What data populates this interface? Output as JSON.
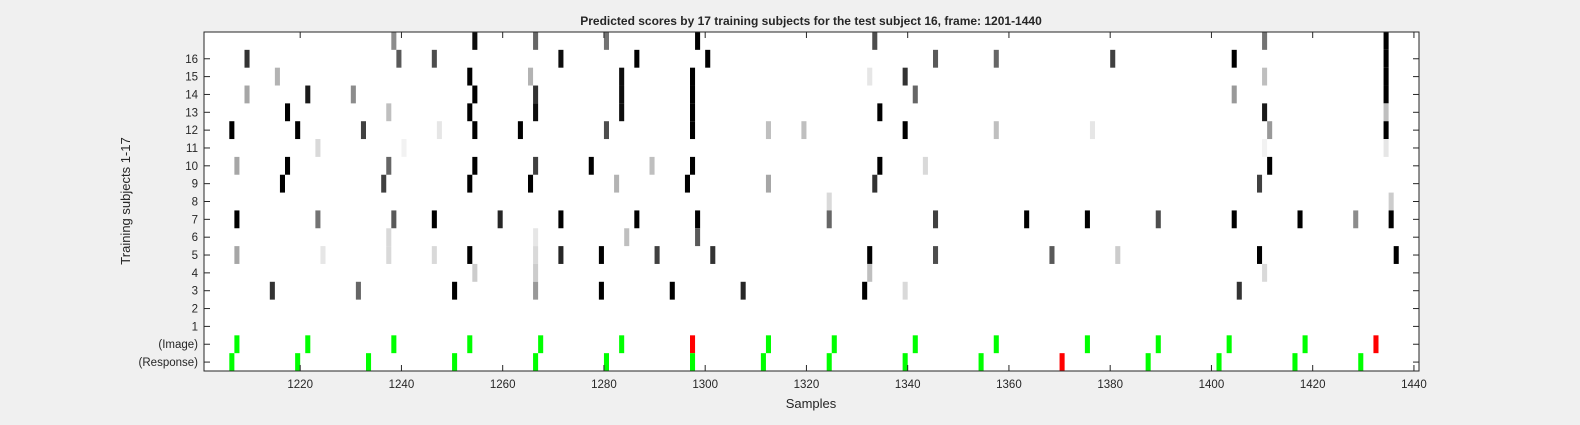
{
  "chart_data": {
    "type": "heatmap",
    "title": "Predicted scores by 17 training subjects for the test subject 16, frame: 1201-1440",
    "xlabel": "Samples",
    "ylabel": "Training subjects 1-17",
    "xlim": [
      1201,
      1440
    ],
    "xticks": [
      1220,
      1240,
      1260,
      1280,
      1300,
      1320,
      1340,
      1360,
      1380,
      1400,
      1420,
      1440
    ],
    "ytick_labels": [
      "16",
      "15",
      "14",
      "13",
      "12",
      "11",
      "10",
      "9",
      "8",
      "7",
      "6",
      "5",
      "4",
      "3",
      "2",
      "1",
      "(Image)",
      "(Response)"
    ],
    "rows": [
      "17",
      "16",
      "15",
      "14",
      "13",
      "12",
      "11",
      "10",
      "9",
      "8",
      "7",
      "6",
      "5",
      "4",
      "3",
      "2",
      "1",
      "(Image)",
      "(Response)"
    ],
    "colors": {
      "background": "#ffffff",
      "correct": "#00ff00",
      "incorrect": "#ff0000",
      "axis": "#262626",
      "figure": "#f0f0f0"
    },
    "marks": [
      {
        "row": "17",
        "x": 1238,
        "gray": 0.55
      },
      {
        "row": "17",
        "x": 1254,
        "gray": 0.05
      },
      {
        "row": "17",
        "x": 1266,
        "gray": 0.4
      },
      {
        "row": "17",
        "x": 1280,
        "gray": 0.45
      },
      {
        "row": "17",
        "x": 1298,
        "gray": 0.0
      },
      {
        "row": "17",
        "x": 1333,
        "gray": 0.3
      },
      {
        "row": "17",
        "x": 1410,
        "gray": 0.45
      },
      {
        "row": "17",
        "x": 1434,
        "gray": 0.0
      },
      {
        "row": "16",
        "x": 1209,
        "gray": 0.2
      },
      {
        "row": "16",
        "x": 1239,
        "gray": 0.35
      },
      {
        "row": "16",
        "x": 1246,
        "gray": 0.3
      },
      {
        "row": "16",
        "x": 1271,
        "gray": 0.05
      },
      {
        "row": "16",
        "x": 1286,
        "gray": 0.0
      },
      {
        "row": "16",
        "x": 1300,
        "gray": 0.0
      },
      {
        "row": "16",
        "x": 1345,
        "gray": 0.35
      },
      {
        "row": "16",
        "x": 1357,
        "gray": 0.4
      },
      {
        "row": "16",
        "x": 1380,
        "gray": 0.25
      },
      {
        "row": "16",
        "x": 1404,
        "gray": 0.0
      },
      {
        "row": "16",
        "x": 1434,
        "gray": 0.0
      },
      {
        "row": "15",
        "x": 1215,
        "gray": 0.7
      },
      {
        "row": "15",
        "x": 1253,
        "gray": 0.0
      },
      {
        "row": "15",
        "x": 1265,
        "gray": 0.7
      },
      {
        "row": "15",
        "x": 1283,
        "gray": 0.05
      },
      {
        "row": "15",
        "x": 1297,
        "gray": 0.0
      },
      {
        "row": "15",
        "x": 1332,
        "gray": 0.9
      },
      {
        "row": "15",
        "x": 1339,
        "gray": 0.2
      },
      {
        "row": "15",
        "x": 1410,
        "gray": 0.75
      },
      {
        "row": "15",
        "x": 1434,
        "gray": 0.0
      },
      {
        "row": "14",
        "x": 1209,
        "gray": 0.65
      },
      {
        "row": "14",
        "x": 1221,
        "gray": 0.1
      },
      {
        "row": "14",
        "x": 1230,
        "gray": 0.55
      },
      {
        "row": "14",
        "x": 1254,
        "gray": 0.0
      },
      {
        "row": "14",
        "x": 1266,
        "gray": 0.2
      },
      {
        "row": "14",
        "x": 1283,
        "gray": 0.05
      },
      {
        "row": "14",
        "x": 1297,
        "gray": 0.0
      },
      {
        "row": "14",
        "x": 1341,
        "gray": 0.4
      },
      {
        "row": "14",
        "x": 1404,
        "gray": 0.6
      },
      {
        "row": "14",
        "x": 1434,
        "gray": 0.0
      },
      {
        "row": "13",
        "x": 1217,
        "gray": 0.0
      },
      {
        "row": "13",
        "x": 1237,
        "gray": 0.75
      },
      {
        "row": "13",
        "x": 1253,
        "gray": 0.0
      },
      {
        "row": "13",
        "x": 1266,
        "gray": 0.05
      },
      {
        "row": "13",
        "x": 1283,
        "gray": 0.05
      },
      {
        "row": "13",
        "x": 1297,
        "gray": 0.0
      },
      {
        "row": "13",
        "x": 1334,
        "gray": 0.0
      },
      {
        "row": "13",
        "x": 1410,
        "gray": 0.1
      },
      {
        "row": "13",
        "x": 1434,
        "gray": 0.75
      },
      {
        "row": "12",
        "x": 1206,
        "gray": 0.0
      },
      {
        "row": "12",
        "x": 1219,
        "gray": 0.0
      },
      {
        "row": "12",
        "x": 1232,
        "gray": 0.25
      },
      {
        "row": "12",
        "x": 1247,
        "gray": 0.9
      },
      {
        "row": "12",
        "x": 1254,
        "gray": 0.0
      },
      {
        "row": "12",
        "x": 1263,
        "gray": 0.0
      },
      {
        "row": "12",
        "x": 1280,
        "gray": 0.3
      },
      {
        "row": "12",
        "x": 1297,
        "gray": 0.0
      },
      {
        "row": "12",
        "x": 1312,
        "gray": 0.75
      },
      {
        "row": "12",
        "x": 1319,
        "gray": 0.75
      },
      {
        "row": "12",
        "x": 1339,
        "gray": 0.0
      },
      {
        "row": "12",
        "x": 1357,
        "gray": 0.75
      },
      {
        "row": "12",
        "x": 1376,
        "gray": 0.9
      },
      {
        "row": "12",
        "x": 1411,
        "gray": 0.6
      },
      {
        "row": "12",
        "x": 1434,
        "gray": 0.0
      },
      {
        "row": "11",
        "x": 1223,
        "gray": 0.85
      },
      {
        "row": "11",
        "x": 1240,
        "gray": 0.95
      },
      {
        "row": "11",
        "x": 1410,
        "gray": 0.95
      },
      {
        "row": "11",
        "x": 1434,
        "gray": 0.9
      },
      {
        "row": "10",
        "x": 1207,
        "gray": 0.65
      },
      {
        "row": "10",
        "x": 1217,
        "gray": 0.0
      },
      {
        "row": "10",
        "x": 1237,
        "gray": 0.4
      },
      {
        "row": "10",
        "x": 1254,
        "gray": 0.0
      },
      {
        "row": "10",
        "x": 1266,
        "gray": 0.25
      },
      {
        "row": "10",
        "x": 1277,
        "gray": 0.0
      },
      {
        "row": "10",
        "x": 1289,
        "gray": 0.75
      },
      {
        "row": "10",
        "x": 1297,
        "gray": 0.0
      },
      {
        "row": "10",
        "x": 1334,
        "gray": 0.0
      },
      {
        "row": "10",
        "x": 1343,
        "gray": 0.85
      },
      {
        "row": "10",
        "x": 1411,
        "gray": 0.0
      },
      {
        "row": "9",
        "x": 1216,
        "gray": 0.0
      },
      {
        "row": "9",
        "x": 1236,
        "gray": 0.25
      },
      {
        "row": "9",
        "x": 1253,
        "gray": 0.0
      },
      {
        "row": "9",
        "x": 1265,
        "gray": 0.0
      },
      {
        "row": "9",
        "x": 1282,
        "gray": 0.7
      },
      {
        "row": "9",
        "x": 1296,
        "gray": 0.0
      },
      {
        "row": "9",
        "x": 1312,
        "gray": 0.65
      },
      {
        "row": "9",
        "x": 1333,
        "gray": 0.2
      },
      {
        "row": "9",
        "x": 1409,
        "gray": 0.25
      },
      {
        "row": "8",
        "x": 1324,
        "gray": 0.85
      },
      {
        "row": "8",
        "x": 1435,
        "gray": 0.8
      },
      {
        "row": "7",
        "x": 1207,
        "gray": 0.0
      },
      {
        "row": "7",
        "x": 1223,
        "gray": 0.45
      },
      {
        "row": "7",
        "x": 1238,
        "gray": 0.35
      },
      {
        "row": "7",
        "x": 1246,
        "gray": 0.0
      },
      {
        "row": "7",
        "x": 1259,
        "gray": 0.15
      },
      {
        "row": "7",
        "x": 1271,
        "gray": 0.0
      },
      {
        "row": "7",
        "x": 1286,
        "gray": 0.0
      },
      {
        "row": "7",
        "x": 1298,
        "gray": 0.0
      },
      {
        "row": "7",
        "x": 1324,
        "gray": 0.4
      },
      {
        "row": "7",
        "x": 1345,
        "gray": 0.25
      },
      {
        "row": "7",
        "x": 1363,
        "gray": 0.0
      },
      {
        "row": "7",
        "x": 1375,
        "gray": 0.0
      },
      {
        "row": "7",
        "x": 1389,
        "gray": 0.3
      },
      {
        "row": "7",
        "x": 1404,
        "gray": 0.0
      },
      {
        "row": "7",
        "x": 1417,
        "gray": 0.0
      },
      {
        "row": "7",
        "x": 1428,
        "gray": 0.55
      },
      {
        "row": "7",
        "x": 1435,
        "gray": 0.0
      },
      {
        "row": "6",
        "x": 1237,
        "gray": 0.85
      },
      {
        "row": "6",
        "x": 1266,
        "gray": 0.9
      },
      {
        "row": "6",
        "x": 1284,
        "gray": 0.75
      },
      {
        "row": "6",
        "x": 1298,
        "gray": 0.35
      },
      {
        "row": "5",
        "x": 1207,
        "gray": 0.65
      },
      {
        "row": "5",
        "x": 1224,
        "gray": 0.9
      },
      {
        "row": "5",
        "x": 1237,
        "gray": 0.85
      },
      {
        "row": "5",
        "x": 1246,
        "gray": 0.85
      },
      {
        "row": "5",
        "x": 1253,
        "gray": 0.0
      },
      {
        "row": "5",
        "x": 1266,
        "gray": 0.85
      },
      {
        "row": "5",
        "x": 1271,
        "gray": 0.15
      },
      {
        "row": "5",
        "x": 1279,
        "gray": 0.0
      },
      {
        "row": "5",
        "x": 1290,
        "gray": 0.25
      },
      {
        "row": "5",
        "x": 1301,
        "gray": 0.2
      },
      {
        "row": "5",
        "x": 1332,
        "gray": 0.0
      },
      {
        "row": "5",
        "x": 1345,
        "gray": 0.3
      },
      {
        "row": "5",
        "x": 1368,
        "gray": 0.35
      },
      {
        "row": "5",
        "x": 1381,
        "gray": 0.8
      },
      {
        "row": "5",
        "x": 1409,
        "gray": 0.0
      },
      {
        "row": "5",
        "x": 1436,
        "gray": 0.0
      },
      {
        "row": "4",
        "x": 1254,
        "gray": 0.8
      },
      {
        "row": "4",
        "x": 1266,
        "gray": 0.8
      },
      {
        "row": "4",
        "x": 1332,
        "gray": 0.75
      },
      {
        "row": "4",
        "x": 1410,
        "gray": 0.85
      },
      {
        "row": "3",
        "x": 1214,
        "gray": 0.2
      },
      {
        "row": "3",
        "x": 1231,
        "gray": 0.4
      },
      {
        "row": "3",
        "x": 1250,
        "gray": 0.0
      },
      {
        "row": "3",
        "x": 1266,
        "gray": 0.6
      },
      {
        "row": "3",
        "x": 1279,
        "gray": 0.0
      },
      {
        "row": "3",
        "x": 1293,
        "gray": 0.0
      },
      {
        "row": "3",
        "x": 1307,
        "gray": 0.15
      },
      {
        "row": "3",
        "x": 1331,
        "gray": 0.0
      },
      {
        "row": "3",
        "x": 1339,
        "gray": 0.85
      },
      {
        "row": "3",
        "x": 1405,
        "gray": 0.2
      }
    ],
    "image_marks": [
      {
        "x": 1207,
        "status": "correct"
      },
      {
        "x": 1221,
        "status": "correct"
      },
      {
        "x": 1238,
        "status": "correct"
      },
      {
        "x": 1253,
        "status": "correct"
      },
      {
        "x": 1267,
        "status": "correct"
      },
      {
        "x": 1283,
        "status": "correct"
      },
      {
        "x": 1297,
        "status": "incorrect"
      },
      {
        "x": 1312,
        "status": "correct"
      },
      {
        "x": 1325,
        "status": "correct"
      },
      {
        "x": 1341,
        "status": "correct"
      },
      {
        "x": 1357,
        "status": "correct"
      },
      {
        "x": 1375,
        "status": "correct"
      },
      {
        "x": 1389,
        "status": "correct"
      },
      {
        "x": 1403,
        "status": "correct"
      },
      {
        "x": 1418,
        "status": "correct"
      },
      {
        "x": 1432,
        "status": "incorrect"
      }
    ],
    "response_marks": [
      {
        "x": 1206,
        "status": "correct"
      },
      {
        "x": 1219,
        "status": "correct"
      },
      {
        "x": 1233,
        "status": "correct"
      },
      {
        "x": 1250,
        "status": "correct"
      },
      {
        "x": 1266,
        "status": "correct"
      },
      {
        "x": 1280,
        "status": "correct"
      },
      {
        "x": 1297,
        "status": "correct"
      },
      {
        "x": 1311,
        "status": "correct"
      },
      {
        "x": 1324,
        "status": "correct"
      },
      {
        "x": 1339,
        "status": "correct"
      },
      {
        "x": 1354,
        "status": "correct"
      },
      {
        "x": 1370,
        "status": "incorrect"
      },
      {
        "x": 1387,
        "status": "correct"
      },
      {
        "x": 1401,
        "status": "correct"
      },
      {
        "x": 1416,
        "status": "correct"
      },
      {
        "x": 1429,
        "status": "correct"
      }
    ]
  }
}
